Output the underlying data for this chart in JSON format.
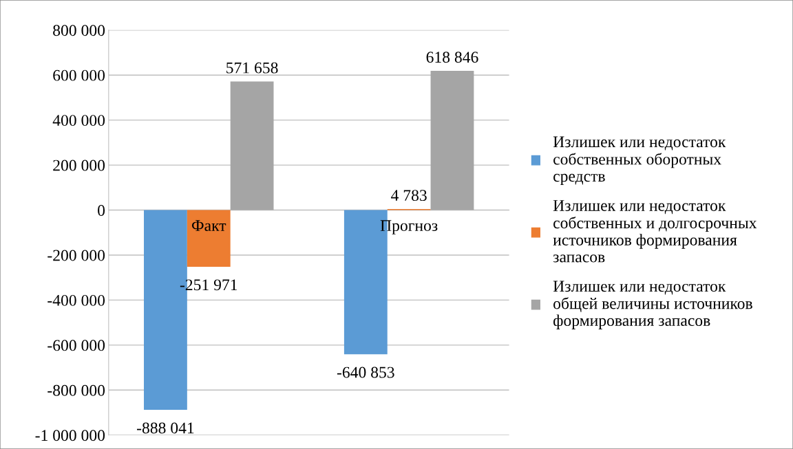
{
  "chart_data": {
    "type": "bar",
    "categories": [
      "Факт",
      "Прогноз"
    ],
    "series": [
      {
        "name": "Излишек или недостаток\nсобственных оборотных\nсредств",
        "color": "#5b9bd5",
        "values": [
          -888041,
          -640853
        ],
        "value_labels": [
          "-888 041",
          "-640 853"
        ]
      },
      {
        "name": "Излишек или недостаток\nсобственных и долгосрочных\nисточников формирования\nзапасов",
        "color": "#ed7d31",
        "values": [
          -251971,
          4783
        ],
        "value_labels": [
          "-251 971",
          "4 783"
        ]
      },
      {
        "name": "Излишек или недостаток\nобщей величины источников\nформирования запасов",
        "color": "#a5a5a5",
        "values": [
          571658,
          618846
        ],
        "value_labels": [
          "571 658",
          "618 846"
        ]
      }
    ],
    "ylim": [
      -1000000,
      800000
    ],
    "yticks": [
      {
        "value": -1000000,
        "label": "-1 000 000"
      },
      {
        "value": -800000,
        "label": "-800 000"
      },
      {
        "value": -600000,
        "label": "-600 000"
      },
      {
        "value": -400000,
        "label": "-400 000"
      },
      {
        "value": -200000,
        "label": "-200 000"
      },
      0,
      {
        "value": 200000,
        "label": "200 000"
      },
      {
        "value": 400000,
        "label": "400 000"
      },
      {
        "value": 600000,
        "label": "600 000"
      },
      {
        "value": 800000,
        "label": "800 000"
      }
    ],
    "grid": "y",
    "legend": "right"
  }
}
